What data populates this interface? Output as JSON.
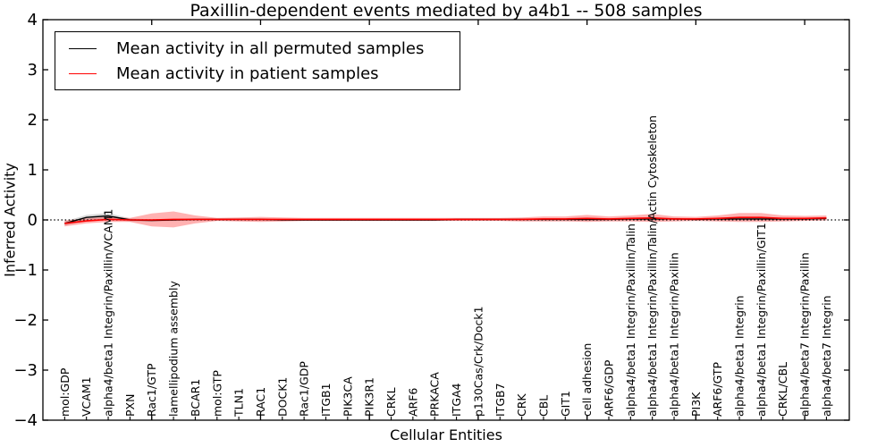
{
  "chart_data": {
    "type": "line",
    "title": "Paxillin-dependent events mediated by a4b1 -- 508 samples",
    "xlabel": "Cellular Entities",
    "ylabel": "Inferred Activity",
    "ylim": [
      -4,
      4
    ],
    "ytick_values": [
      -4,
      -3,
      -2,
      -1,
      0,
      1,
      2,
      3,
      4
    ],
    "ytick_labels": [
      "−4",
      "−3",
      "−2",
      "−1",
      "0",
      "1",
      "2",
      "3",
      "4"
    ],
    "xtick_major_values": [
      5,
      10,
      15,
      20,
      25,
      30,
      35
    ],
    "grid": false,
    "legend_position": "upper left",
    "zero_line": {
      "value": 0,
      "style": "dotted",
      "color": "#000000"
    },
    "categories": [
      "mol:GDP",
      "VCAM1",
      "alpha4/beta1 Integrin/Paxillin/VCAM1",
      "PXN",
      "Rac1/GTP",
      "lamellipodium assembly",
      "BCAR1",
      "mol:GTP",
      "TLN1",
      "RAC1",
      "DOCK1",
      "Rac1/GDP",
      "ITGB1",
      "PIK3CA",
      "PIK3R1",
      "CRKL",
      "ARF6",
      "PRKACA",
      "ITGA4",
      "p130Cas/Crk/Dock1",
      "ITGB7",
      "CRK",
      "CBL",
      "GIT1",
      "cell adhesion",
      "ARF6/GDP",
      "alpha4/beta1 Integrin/Paxillin/Talin",
      "alpha4/beta1 Integrin/Paxillin/Talin/Actin Cytoskeleton",
      "alpha4/beta1 Integrin/Paxillin",
      "PI3K",
      "ARF6/GTP",
      "alpha4/beta1 Integrin",
      "alpha4/beta1 Integrin/Paxillin/GIT1",
      "CRKL/CBL",
      "alpha4/beta7 Integrin/Paxillin",
      "alpha4/beta7 Integrin"
    ],
    "series": [
      {
        "name": "Mean activity in all permuted samples",
        "color": "#000000",
        "band_color": "rgba(0,0,0,0.15)",
        "values": [
          -0.07,
          0.05,
          0.08,
          0.0,
          -0.01,
          0.0,
          0.01,
          0.01,
          0.01,
          0.01,
          0.0,
          0.0,
          0.0,
          0.0,
          0.0,
          0.0,
          0.0,
          0.0,
          0.01,
          0.01,
          0.01,
          0.01,
          0.01,
          0.01,
          0.01,
          0.01,
          0.02,
          0.02,
          0.02,
          0.01,
          0.02,
          0.02,
          0.02,
          0.02,
          0.02,
          0.03
        ],
        "band": [
          0.04,
          0.05,
          0.06,
          0.03,
          0.02,
          0.02,
          0.02,
          0.02,
          0.02,
          0.02,
          0.02,
          0.02,
          0.02,
          0.02,
          0.02,
          0.02,
          0.02,
          0.02,
          0.02,
          0.02,
          0.02,
          0.02,
          0.02,
          0.02,
          0.03,
          0.02,
          0.03,
          0.03,
          0.02,
          0.02,
          0.03,
          0.03,
          0.03,
          0.03,
          0.02,
          0.03
        ]
      },
      {
        "name": "Mean activity in patient samples",
        "color": "#ff0000",
        "band_color": "rgba(255,0,0,0.30)",
        "values": [
          -0.07,
          -0.02,
          0.01,
          0.0,
          0.0,
          0.01,
          0.01,
          0.01,
          0.01,
          0.01,
          0.01,
          0.01,
          0.01,
          0.01,
          0.01,
          0.01,
          0.01,
          0.01,
          0.01,
          0.01,
          0.01,
          0.01,
          0.02,
          0.02,
          0.03,
          0.02,
          0.03,
          0.04,
          0.02,
          0.02,
          0.03,
          0.05,
          0.05,
          0.03,
          0.03,
          0.04
        ],
        "band": [
          0.06,
          0.05,
          0.05,
          0.04,
          0.13,
          0.16,
          0.08,
          0.03,
          0.04,
          0.05,
          0.04,
          0.03,
          0.03,
          0.03,
          0.03,
          0.03,
          0.03,
          0.03,
          0.03,
          0.03,
          0.03,
          0.04,
          0.05,
          0.05,
          0.07,
          0.05,
          0.06,
          0.08,
          0.05,
          0.04,
          0.06,
          0.09,
          0.09,
          0.06,
          0.05,
          0.05
        ]
      }
    ]
  }
}
